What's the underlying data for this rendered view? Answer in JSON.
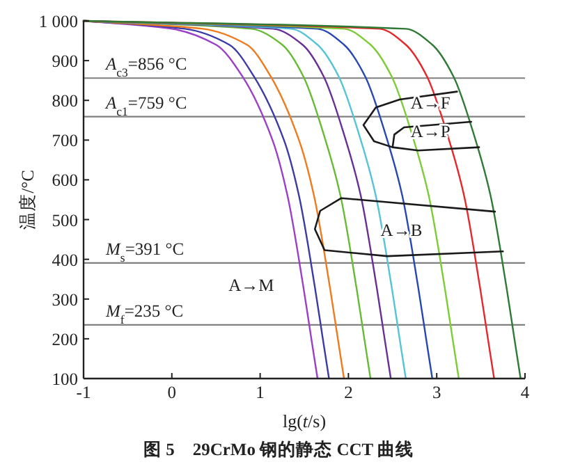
{
  "chart_data": {
    "type": "line",
    "title": "**图 5　29CrMo 钢的静态 CCT 曲线**",
    "xlabel": "lg(*t*/s)",
    "ylabel": "温度/°C",
    "xlim": [
      -1,
      4
    ],
    "ylim": [
      100,
      1000
    ],
    "xticks": [
      -1,
      0,
      1,
      2,
      3,
      4
    ],
    "yticks": [
      100,
      200,
      300,
      400,
      500,
      600,
      700,
      800,
      900,
      {
        "value": 1000,
        "label": "1 000"
      }
    ],
    "grid": false,
    "marker": "none",
    "line_style": "solid",
    "series": [
      {
        "color": "#9b3fc9",
        "x": [
          -1,
          0.0,
          0.5,
          0.8,
          1.14,
          1.31,
          1.49,
          1.58,
          1.65
        ],
        "values": [
          1000,
          980,
          940,
          860,
          700,
          560,
          330,
          200,
          100
        ]
      },
      {
        "color": "#3a3aa8",
        "x": [
          -1,
          0.15,
          0.65,
          0.93,
          1.27,
          1.44,
          1.62,
          1.71,
          1.78
        ],
        "values": [
          1000,
          980,
          940,
          860,
          700,
          560,
          330,
          200,
          100
        ]
      },
      {
        "color": "#f07a1e",
        "x": [
          -1,
          0.35,
          0.85,
          1.12,
          1.44,
          1.61,
          1.79,
          1.88,
          1.95
        ],
        "values": [
          1000,
          980,
          940,
          860,
          700,
          560,
          330,
          200,
          100
        ]
      },
      {
        "color": "#66bb33",
        "x": [
          -1,
          0.9,
          1.25,
          1.49,
          1.74,
          1.91,
          2.09,
          2.18,
          2.25
        ],
        "values": [
          1000,
          980,
          940,
          860,
          700,
          560,
          330,
          200,
          100
        ]
      },
      {
        "color": "#6a2f96",
        "x": [
          -1,
          1.15,
          1.48,
          1.72,
          1.97,
          2.14,
          2.32,
          2.41,
          2.48
        ],
        "values": [
          1000,
          980,
          940,
          860,
          700,
          560,
          330,
          200,
          100
        ]
      },
      {
        "color": "#55c4d6",
        "x": [
          -1,
          1.35,
          1.65,
          1.89,
          2.14,
          2.31,
          2.49,
          2.58,
          2.65
        ],
        "values": [
          1000,
          980,
          940,
          860,
          700,
          560,
          330,
          200,
          100
        ]
      },
      {
        "color": "#2747b5",
        "x": [
          -1,
          1.65,
          1.95,
          2.19,
          2.44,
          2.61,
          2.79,
          2.88,
          2.95
        ],
        "values": [
          1000,
          980,
          940,
          860,
          700,
          560,
          330,
          200,
          100
        ]
      },
      {
        "color": "#7ccc36",
        "x": [
          -1,
          1.95,
          2.25,
          2.49,
          2.74,
          2.91,
          3.09,
          3.18,
          3.25
        ],
        "values": [
          1000,
          980,
          940,
          860,
          700,
          560,
          330,
          200,
          100
        ]
      },
      {
        "color": "#e8262b",
        "x": [
          -1,
          2.35,
          2.65,
          2.89,
          3.14,
          3.31,
          3.49,
          3.58,
          3.65
        ],
        "values": [
          1000,
          980,
          940,
          860,
          700,
          560,
          330,
          200,
          100
        ]
      },
      {
        "color": "#2f7a35",
        "x": [
          -1,
          2.65,
          2.95,
          3.19,
          3.44,
          3.61,
          3.79,
          3.88,
          3.95
        ],
        "values": [
          1000,
          980,
          940,
          860,
          700,
          560,
          330,
          200,
          100
        ]
      },
      {
        "color": "#1a1a1a",
        "x": [
          3.23,
          2.58,
          2.31,
          2.17,
          2.29,
          2.5,
          2.79,
          3.48
        ],
        "values": [
          822,
          802,
          782,
          738,
          697,
          682,
          674,
          682
        ]
      },
      {
        "color": "#1a1a1a",
        "x": [
          3.39,
          2.63,
          2.52,
          2.5
        ],
        "values": [
          746,
          732,
          714,
          682
        ]
      },
      {
        "color": "#1a1a1a",
        "x": [
          3.66,
          1.92,
          1.68,
          1.62,
          1.73,
          2.44,
          3.75
        ],
        "values": [
          520,
          554,
          522,
          476,
          423,
          408,
          420
        ]
      }
    ],
    "ref_lines": [
      {
        "axis": "y",
        "value": 856,
        "label": "*A*$_{c3}$=856 °C",
        "color": "#808080"
      },
      {
        "axis": "y",
        "value": 759,
        "label": "*A*$_{c1}$=759 °C",
        "color": "#808080"
      },
      {
        "axis": "y",
        "value": 391,
        "label": "*M*$_{s}$=391 °C",
        "color": "#808080"
      },
      {
        "axis": "y",
        "value": 235,
        "label": "*M*$_{f}$=235 °C",
        "color": "#808080"
      }
    ],
    "annotations": [
      "A→F",
      "A→P",
      "A→B",
      "A→M"
    ]
  }
}
